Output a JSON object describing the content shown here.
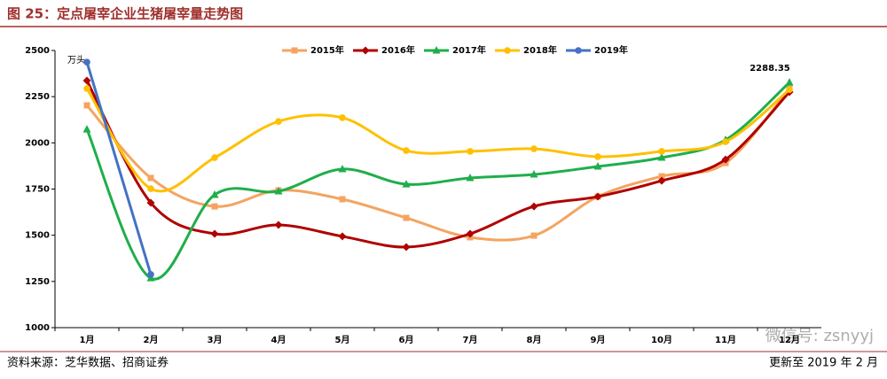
{
  "chart_data": {
    "type": "line",
    "title": "图 25：定点屠宰企业生猪屠宰量走势图",
    "y_label": "万头",
    "source": "资料来源：芝华数据、招商证券",
    "updated": "更新至 2019 年 2 月",
    "watermark": "微信号: zsnyyj",
    "annotations": [
      {
        "text": "2288.35",
        "series": 3,
        "index": 11
      }
    ],
    "categories": [
      "1月",
      "2月",
      "3月",
      "4月",
      "5月",
      "6月",
      "7月",
      "8月",
      "9月",
      "10月",
      "11月",
      "12月"
    ],
    "series": [
      {
        "name": "2015年",
        "color": "#f4a460",
        "marker": "square",
        "values": [
          2203,
          1810,
          1656,
          1743,
          1695,
          1594,
          1489,
          1498,
          1709,
          1819,
          1891,
          2294
        ]
      },
      {
        "name": "2016年",
        "color": "#b00000",
        "marker": "diamond",
        "values": [
          2337,
          1676,
          1508,
          1556,
          1494,
          1436,
          1508,
          1656,
          1709,
          1795,
          1910,
          2275
        ]
      },
      {
        "name": "2017年",
        "color": "#1fae4b",
        "marker": "triangle",
        "values": [
          2073,
          1268,
          1719,
          1738,
          1858,
          1776,
          1810,
          1829,
          1872,
          1920,
          2016,
          2327
        ]
      },
      {
        "name": "2018年",
        "color": "#ffc000",
        "marker": "circle",
        "values": [
          2294,
          1752,
          1920,
          2116,
          2136,
          1958,
          1954,
          1968,
          1925,
          1954,
          2006,
          2288.35
        ]
      },
      {
        "name": "2019年",
        "color": "#4472c4",
        "marker": "circle",
        "values": [
          2437,
          1288,
          null,
          null,
          null,
          null,
          null,
          null,
          null,
          null,
          null,
          null
        ]
      }
    ],
    "ylim": [
      1000,
      2500
    ],
    "yticks": [
      1000,
      1250,
      1500,
      1750,
      2000,
      2250,
      2500
    ],
    "legend": "top",
    "grid": false
  }
}
